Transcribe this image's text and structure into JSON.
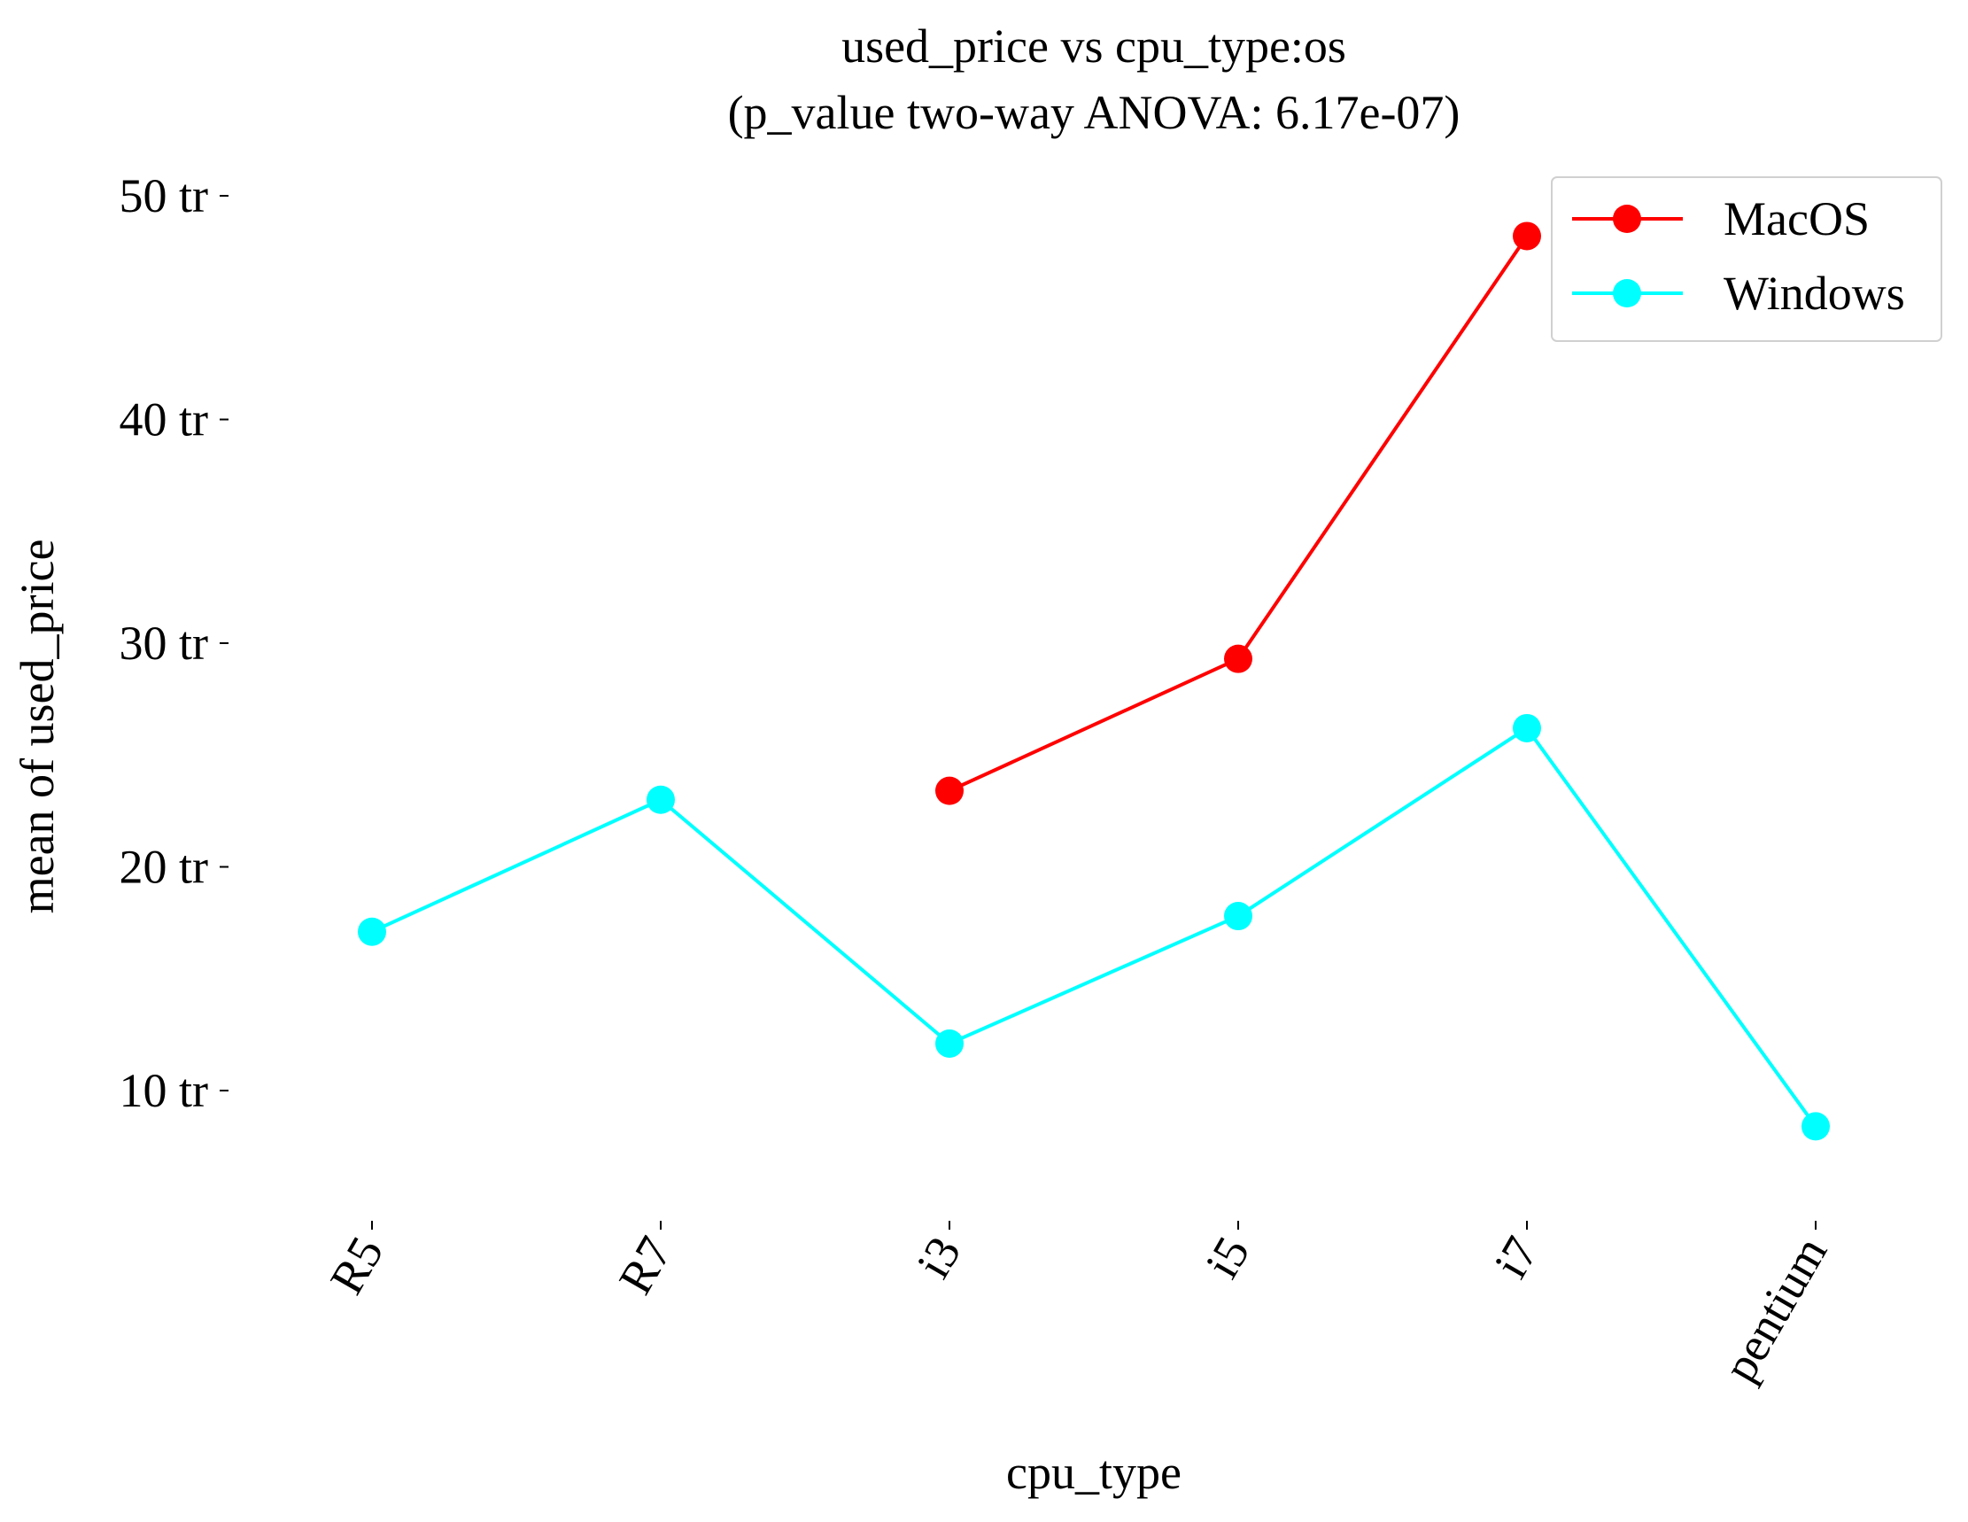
{
  "chart_data": {
    "type": "line",
    "title": "used_price vs cpu_type:os",
    "subtitle": "(p_value two-way ANOVA: 6.17e-07)",
    "xlabel": "cpu_type",
    "ylabel": "mean of used_price",
    "categories": [
      "R5",
      "R7",
      "i3",
      "i5",
      "i7",
      "pentium"
    ],
    "y_ticks": [
      10,
      20,
      30,
      40,
      50
    ],
    "y_tick_labels": [
      "10 tr",
      "20 tr",
      "30 tr",
      "40 tr",
      "50 tr"
    ],
    "ylim": [
      5,
      52
    ],
    "grid": false,
    "legend_position": "top-right",
    "series": [
      {
        "name": "MacOS",
        "color": "#ff0000",
        "values": [
          null,
          null,
          23.4,
          29.3,
          48.2,
          null
        ]
      },
      {
        "name": "Windows",
        "color": "#00ffff",
        "values": [
          17.1,
          23.0,
          12.1,
          17.8,
          26.2,
          8.4
        ]
      }
    ]
  }
}
